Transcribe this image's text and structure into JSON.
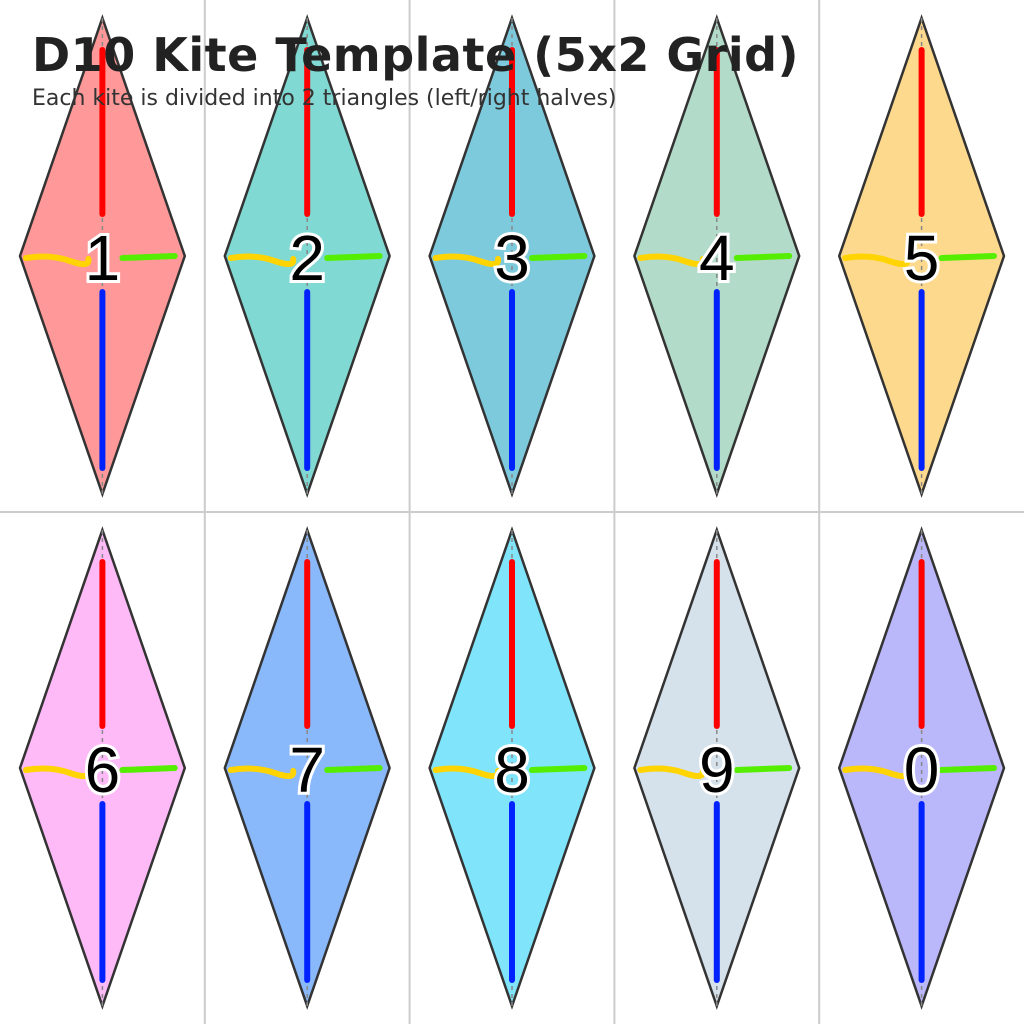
{
  "header": {
    "title": "D10 Kite Template (5x2 Grid)",
    "subtitle": "Each kite is divided into 2 triangles (left/right halves)"
  },
  "grid": {
    "columns": 5,
    "rows": 2
  },
  "colors": {
    "gridline": "#cccccc",
    "outline": "#333333",
    "centerline": "#888888",
    "marker_top": "#ff0000",
    "marker_bottom": "#0022ff",
    "marker_left": "#ffd400",
    "marker_right": "#55ee00"
  },
  "kites": [
    {
      "number": "1",
      "fill": "#ff9999"
    },
    {
      "number": "2",
      "fill": "#80d9d2"
    },
    {
      "number": "3",
      "fill": "#7ecadd"
    },
    {
      "number": "4",
      "fill": "#b3dbc9"
    },
    {
      "number": "5",
      "fill": "#fdd98d"
    },
    {
      "number": "6",
      "fill": "#fdbaf6"
    },
    {
      "number": "7",
      "fill": "#89b8fb"
    },
    {
      "number": "8",
      "fill": "#80e5fb"
    },
    {
      "number": "9",
      "fill": "#d5e1eb"
    },
    {
      "number": "0",
      "fill": "#bbb7fb"
    }
  ]
}
